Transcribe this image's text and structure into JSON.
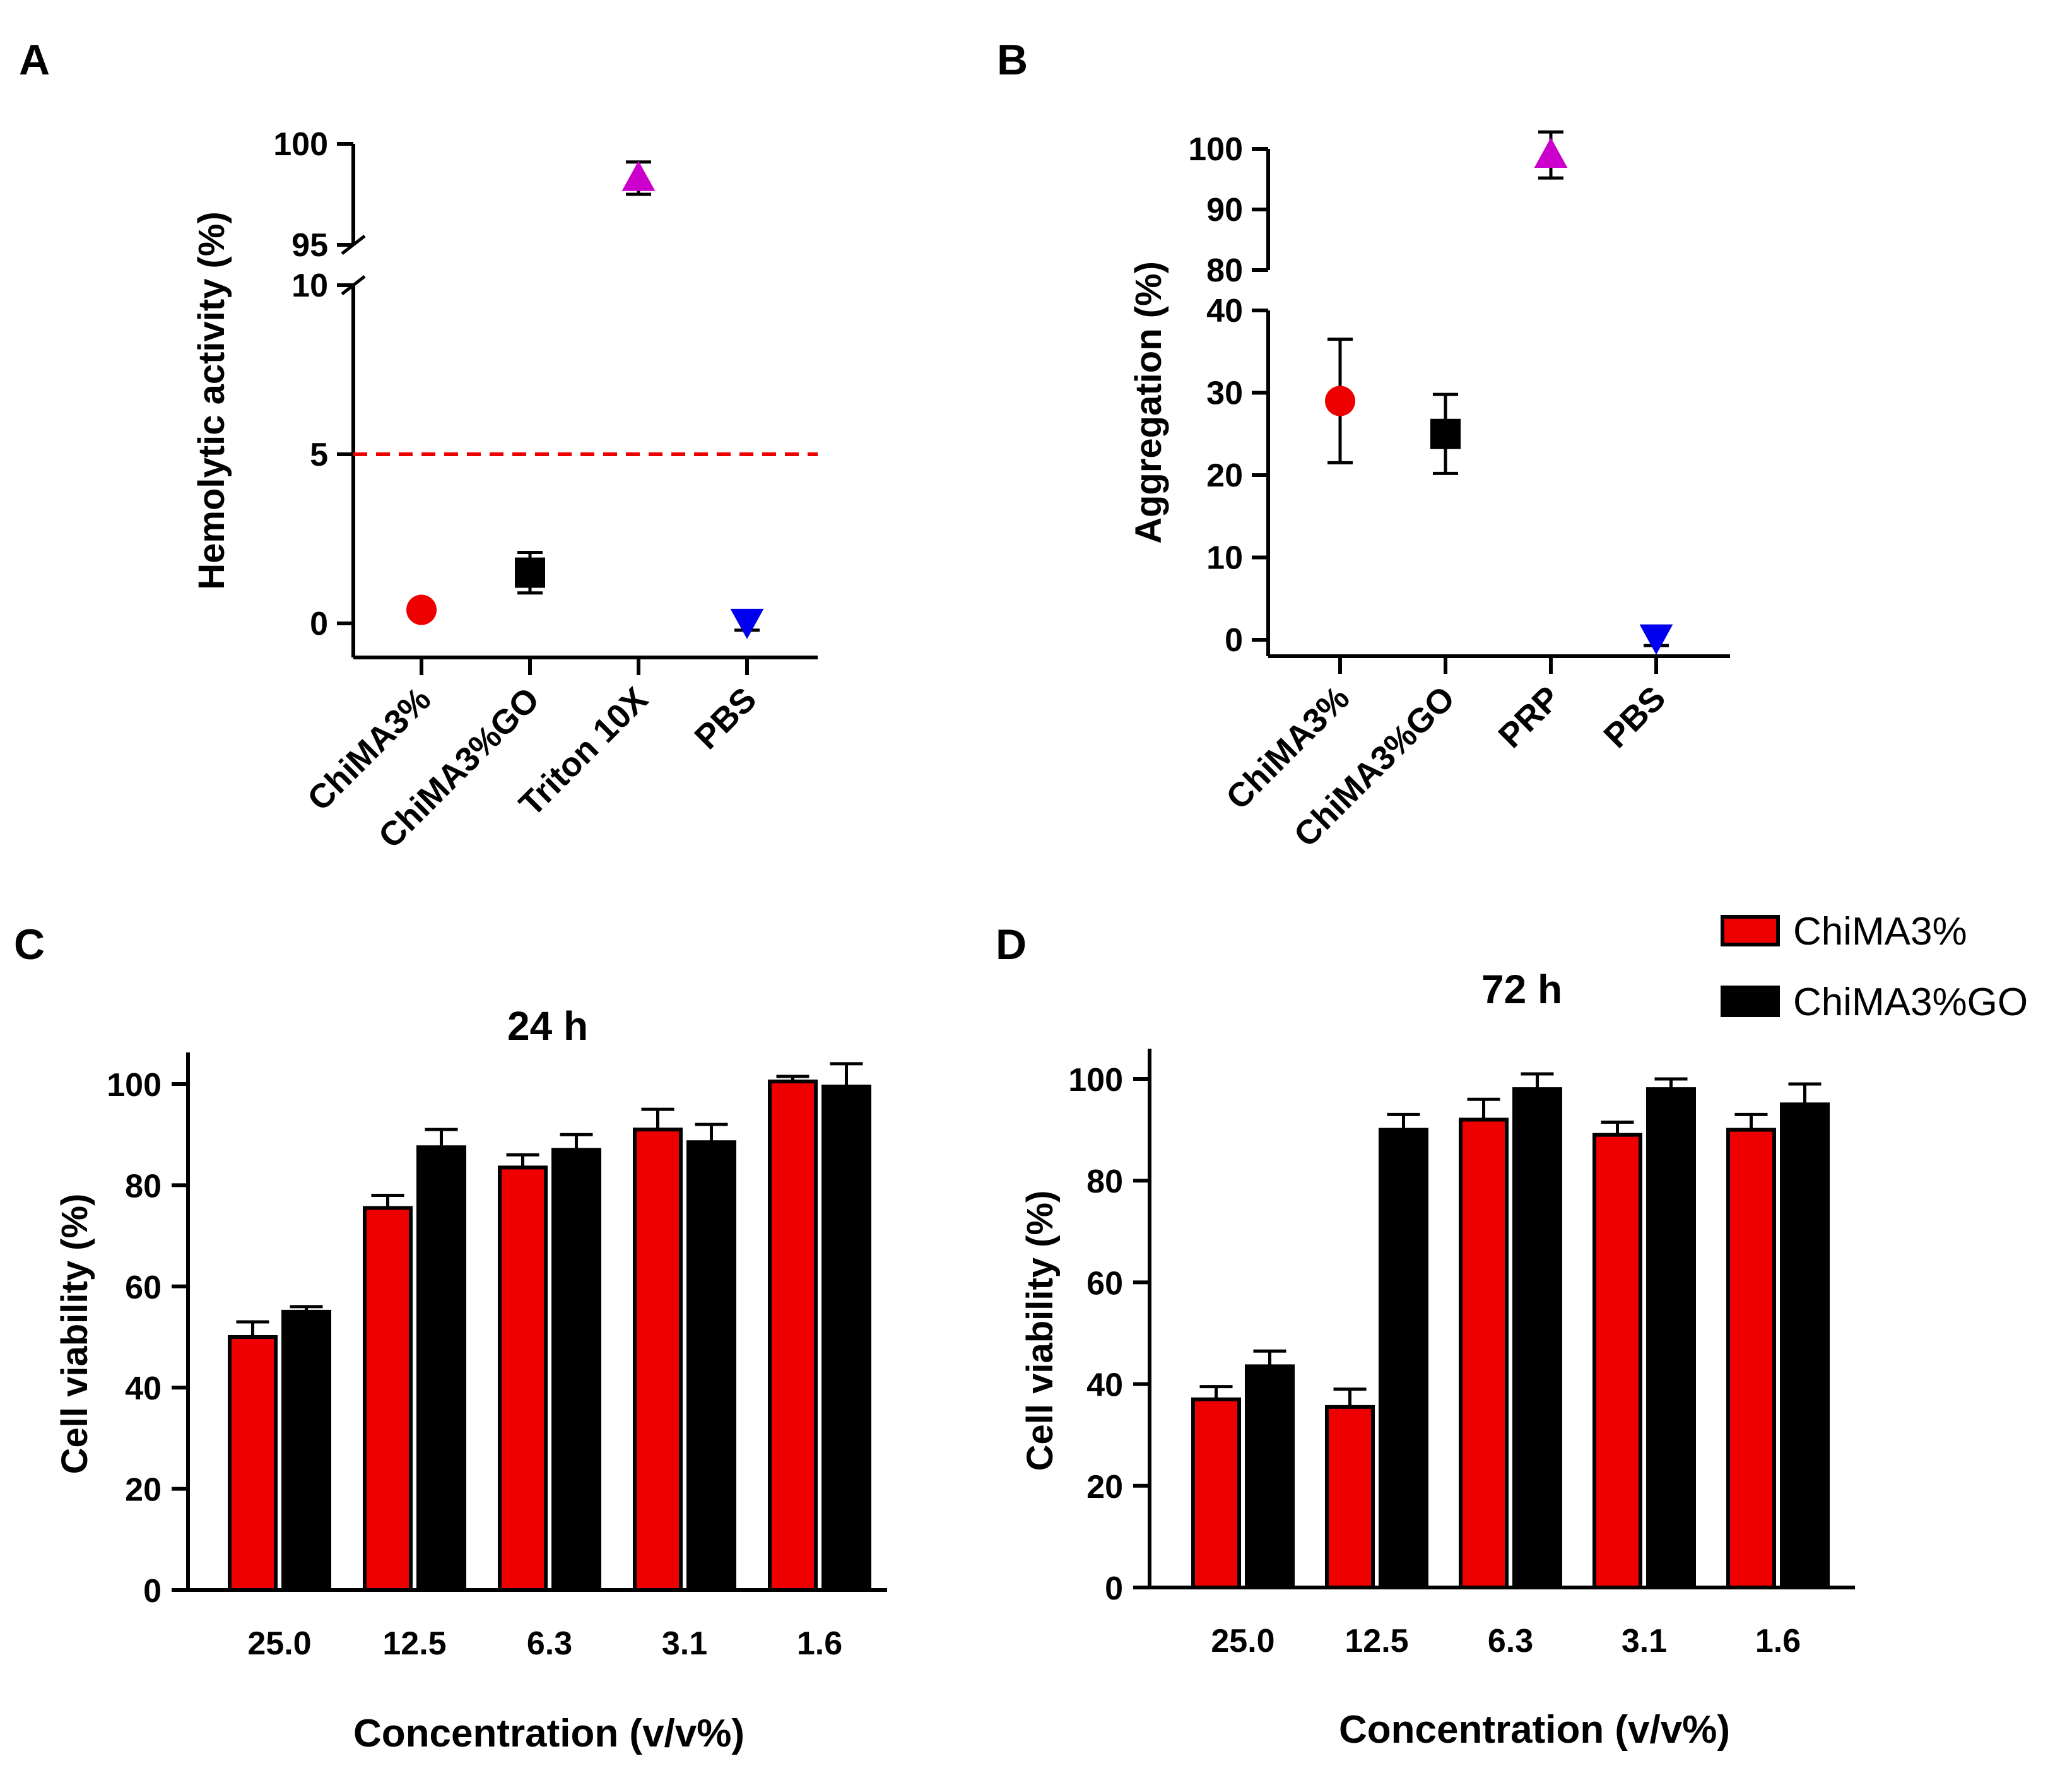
{
  "colors": {
    "red": "#ee0000",
    "black": "#000000",
    "magenta": "#cc00cc",
    "blue": "#0000ee",
    "threshold": "#ee0000"
  },
  "chart_data": [
    {
      "id": "A",
      "panel_label": "A",
      "type": "scatter",
      "title": "",
      "ylabel": "Hemolytic activity (%)",
      "xlabel": "",
      "categories": [
        "ChiMA3%",
        "ChiMA3%GO",
        "Triton 10X",
        "PBS"
      ],
      "values": [
        0.4,
        1.5,
        98.3,
        0.05
      ],
      "errors": [
        0.2,
        0.6,
        0.8,
        0.25
      ],
      "markers": [
        "circle",
        "square",
        "triangle-up",
        "triangle-down"
      ],
      "marker_colors": [
        "#ee0000",
        "#000000",
        "#cc00cc",
        "#0000ee"
      ],
      "y_axis_break": {
        "lower_range": [
          0,
          10
        ],
        "upper_range": [
          95,
          100
        ]
      },
      "yticks_lower": [
        "0",
        "5",
        "10"
      ],
      "yticks_upper": [
        "95",
        "100"
      ],
      "threshold_line": {
        "value": 5,
        "style": "dashed",
        "color": "#ee0000"
      }
    },
    {
      "id": "B",
      "panel_label": "B",
      "type": "scatter",
      "title": "",
      "ylabel": "Aggregation (%)",
      "xlabel": "",
      "categories": [
        "ChiMA3%",
        "ChiMA3%GO",
        "PRP",
        "PBS"
      ],
      "values": [
        29,
        25,
        99,
        0.3
      ],
      "errors": [
        7.5,
        4.8,
        3.8,
        1.0
      ],
      "markers": [
        "circle",
        "square",
        "triangle-up",
        "triangle-down"
      ],
      "marker_colors": [
        "#ee0000",
        "#000000",
        "#cc00cc",
        "#0000ee"
      ],
      "y_axis_break": {
        "lower_range": [
          0,
          40
        ],
        "upper_range": [
          80,
          100
        ]
      },
      "yticks_lower": [
        "0",
        "10",
        "20",
        "30",
        "40"
      ],
      "yticks_upper": [
        "80",
        "90",
        "100"
      ]
    },
    {
      "id": "C",
      "panel_label": "C",
      "type": "bar",
      "title": "24 h",
      "xlabel": "Concentration (v/v%)",
      "ylabel": "Cell viability (%)",
      "categories": [
        "25.0",
        "12.5",
        "6.3",
        "3.1",
        "1.6"
      ],
      "ylim": [
        0,
        105
      ],
      "yticks": [
        "0",
        "20",
        "40",
        "60",
        "80",
        "100"
      ],
      "series": [
        {
          "name": "ChiMA3%",
          "color": "#ee0000",
          "values": [
            50,
            75.5,
            83.5,
            91,
            100.5
          ],
          "errors": [
            3,
            2.5,
            2.5,
            4,
            1
          ]
        },
        {
          "name": "ChiMA3%GO",
          "color": "#000000",
          "values": [
            55,
            87.5,
            87,
            88.5,
            99.5
          ],
          "errors": [
            1,
            3.5,
            3,
            3.5,
            4.5
          ]
        }
      ]
    },
    {
      "id": "D",
      "panel_label": "D",
      "type": "bar",
      "title": "72 h",
      "xlabel": "Concentration (v/v%)",
      "ylabel": "Cell viability (%)",
      "categories": [
        "25.0",
        "12.5",
        "6.3",
        "3.1",
        "1.6"
      ],
      "ylim": [
        0,
        105
      ],
      "yticks": [
        "0",
        "20",
        "40",
        "60",
        "80",
        "100"
      ],
      "legend": [
        "ChiMA3%",
        "ChiMA3%GO"
      ],
      "legend_position": "top-right",
      "series": [
        {
          "name": "ChiMA3%",
          "color": "#ee0000",
          "values": [
            37,
            35.5,
            92,
            89,
            90
          ],
          "errors": [
            2.5,
            3.5,
            4,
            2.5,
            3
          ]
        },
        {
          "name": "ChiMA3%GO",
          "color": "#000000",
          "values": [
            43.5,
            90,
            98,
            98,
            95
          ],
          "errors": [
            3,
            3,
            3,
            2,
            4
          ]
        }
      ]
    }
  ]
}
